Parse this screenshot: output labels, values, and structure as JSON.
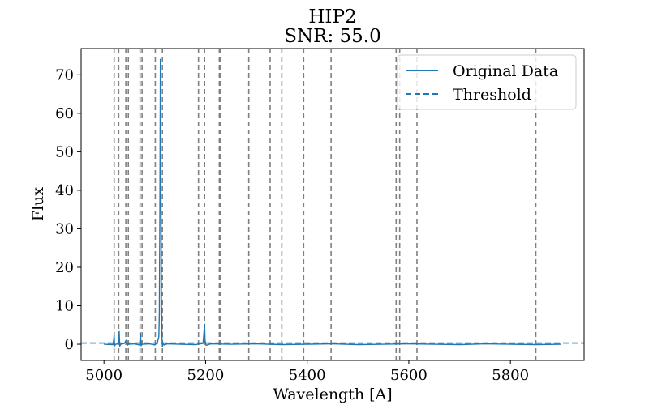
{
  "chart_data": {
    "type": "line",
    "title": "HIP2",
    "subtitle": "SNR: 55.0",
    "xlabel": "Wavelength [A]",
    "ylabel": "Flux",
    "xlim": [
      4955,
      5945
    ],
    "ylim": [
      -4.2,
      76.8
    ],
    "xticks": [
      5000,
      5200,
      5400,
      5600,
      5800
    ],
    "yticks": [
      0,
      10,
      20,
      30,
      40,
      50,
      60,
      70
    ],
    "grid": false,
    "legend_position": "top-right",
    "series": [
      {
        "name": "Original Data",
        "style": "solid",
        "color": "#1f77b4",
        "x": [
          5000,
          5018,
          5020,
          5021,
          5023,
          5028,
          5030,
          5031,
          5033,
          5040,
          5045,
          5046,
          5048,
          5060,
          5070,
          5072,
          5073,
          5075,
          5090,
          5100,
          5105,
          5108,
          5109,
          5110,
          5111,
          5112,
          5113,
          5114,
          5115,
          5116,
          5118,
          5125,
          5150,
          5180,
          5195,
          5197,
          5198,
          5199,
          5201,
          5210,
          5250,
          5300,
          5350,
          5400,
          5450,
          5500,
          5550,
          5600,
          5650,
          5700,
          5750,
          5800,
          5850,
          5900
        ],
        "y": [
          0.0,
          -0.1,
          2.3,
          -0.4,
          0.0,
          0.1,
          3.3,
          -0.5,
          0.0,
          0.2,
          1.2,
          -0.3,
          0.0,
          0.1,
          -0.2,
          2.9,
          -0.4,
          0.0,
          0.1,
          -0.2,
          0.4,
          2.0,
          8.0,
          35.0,
          74.0,
          45.0,
          12.0,
          2.5,
          -0.6,
          0.3,
          -0.2,
          0.1,
          0.0,
          -0.1,
          0.2,
          3.5,
          5.2,
          1.0,
          -0.3,
          0.1,
          0.0,
          0.1,
          -0.1,
          0.0,
          0.1,
          -0.1,
          0.0,
          0.1,
          0.0,
          -0.1,
          0.1,
          0.0,
          -0.1,
          0.0
        ]
      },
      {
        "name": "Threshold",
        "style": "dashed",
        "color": "#1f77b4",
        "x": [
          4955,
          5945
        ],
        "y": [
          0.3,
          0.3
        ]
      }
    ],
    "vlines": [
      5020,
      5029,
      5043,
      5048,
      5071,
      5075,
      5101,
      5115,
      5186,
      5198,
      5227,
      5229,
      5285,
      5327,
      5350,
      5393,
      5447,
      5575,
      5582,
      5616,
      5850
    ]
  }
}
